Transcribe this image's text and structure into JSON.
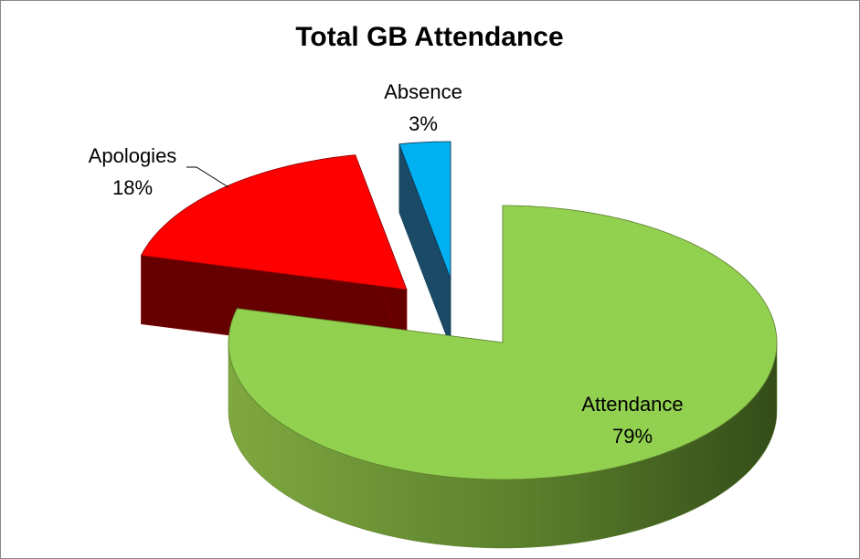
{
  "chart_data": {
    "type": "pie3d",
    "title": "Total GB Attendance",
    "categories": [
      "Attendance",
      "Apologies",
      "Absence"
    ],
    "values": [
      79,
      18,
      3
    ],
    "value_labels": [
      "79%",
      "18%",
      "3%"
    ],
    "colors": [
      "#92d050",
      "#ff0000",
      "#00b0f0"
    ]
  }
}
